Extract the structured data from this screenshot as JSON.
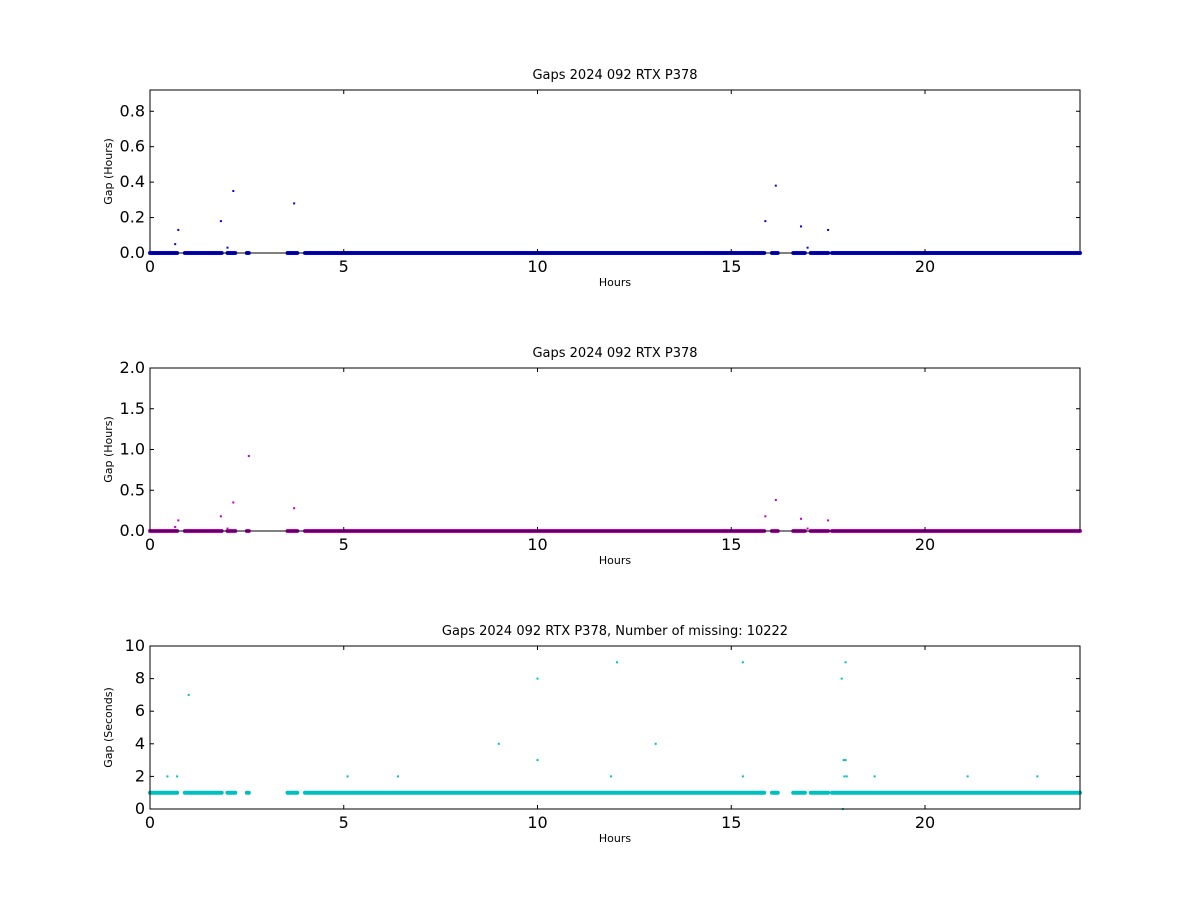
{
  "chart_data": [
    {
      "type": "scatter",
      "title": "Gaps 2024 092 RTX  P378",
      "xlabel": "Hours",
      "ylabel": "Gap (Hours)",
      "xlim": [
        0,
        24
      ],
      "ylim": [
        0,
        0.92
      ],
      "xticks": [
        "0",
        "5",
        "10",
        "15",
        "20"
      ],
      "yticks": [
        "0.0",
        "0.2",
        "0.4",
        "0.6",
        "0.8"
      ],
      "grid": false,
      "color": "#0000ff",
      "baseline": {
        "y": 0.0,
        "x_ranges": [
          [
            0,
            0.7
          ],
          [
            0.9,
            1.85
          ],
          [
            2.0,
            2.2
          ],
          [
            2.5,
            2.55
          ],
          [
            3.55,
            3.8
          ],
          [
            4.0,
            15.85
          ],
          [
            16.05,
            16.2
          ],
          [
            16.6,
            16.9
          ],
          [
            17.05,
            17.5
          ],
          [
            17.6,
            24
          ]
        ]
      },
      "points": [
        {
          "x": 0.65,
          "y": 0.05
        },
        {
          "x": 0.73,
          "y": 0.13
        },
        {
          "x": 1.83,
          "y": 0.18
        },
        {
          "x": 2.0,
          "y": 0.03
        },
        {
          "x": 2.15,
          "y": 0.35
        },
        {
          "x": 3.72,
          "y": 0.28
        },
        {
          "x": 15.88,
          "y": 0.18
        },
        {
          "x": 16.15,
          "y": 0.38
        },
        {
          "x": 16.8,
          "y": 0.15
        },
        {
          "x": 16.97,
          "y": 0.03
        },
        {
          "x": 17.5,
          "y": 0.13
        }
      ]
    },
    {
      "type": "scatter",
      "title": "Gaps 2024 092 RTX  P378",
      "xlabel": "Hours",
      "ylabel": "Gap (Hours)",
      "xlim": [
        0,
        24
      ],
      "ylim": [
        0,
        2.0
      ],
      "xticks": [
        "0",
        "5",
        "10",
        "15",
        "20"
      ],
      "yticks": [
        "0.0",
        "0.5",
        "1.0",
        "1.5",
        "2.0"
      ],
      "grid": false,
      "color": "#bf00bf",
      "baseline": {
        "y": 0.0,
        "x_ranges": [
          [
            0,
            0.7
          ],
          [
            0.9,
            1.85
          ],
          [
            2.0,
            2.2
          ],
          [
            2.5,
            2.55
          ],
          [
            3.55,
            3.8
          ],
          [
            4.0,
            15.85
          ],
          [
            16.05,
            16.2
          ],
          [
            16.6,
            16.9
          ],
          [
            17.05,
            17.5
          ],
          [
            17.6,
            24
          ]
        ]
      },
      "points": [
        {
          "x": 0.65,
          "y": 0.05
        },
        {
          "x": 0.73,
          "y": 0.13
        },
        {
          "x": 1.83,
          "y": 0.18
        },
        {
          "x": 2.0,
          "y": 0.03
        },
        {
          "x": 2.15,
          "y": 0.35
        },
        {
          "x": 2.55,
          "y": 0.92
        },
        {
          "x": 3.72,
          "y": 0.28
        },
        {
          "x": 15.88,
          "y": 0.18
        },
        {
          "x": 16.15,
          "y": 0.38
        },
        {
          "x": 16.8,
          "y": 0.15
        },
        {
          "x": 16.97,
          "y": 0.03
        },
        {
          "x": 17.5,
          "y": 0.13
        }
      ]
    },
    {
      "type": "scatter",
      "title": "Gaps 2024 092 RTX  P378, Number of missing: 10222",
      "xlabel": "Hours",
      "ylabel": "Gap (Seconds)",
      "xlim": [
        0,
        24
      ],
      "ylim": [
        0,
        10
      ],
      "xticks": [
        "0",
        "5",
        "10",
        "15",
        "20"
      ],
      "yticks": [
        "0",
        "2",
        "4",
        "6",
        "8",
        "10"
      ],
      "grid": false,
      "color": "#00bfbf",
      "baseline": {
        "y": 1.0,
        "x_ranges": [
          [
            0,
            0.7
          ],
          [
            0.9,
            1.85
          ],
          [
            2.0,
            2.2
          ],
          [
            2.5,
            2.55
          ],
          [
            3.55,
            3.8
          ],
          [
            4.0,
            15.85
          ],
          [
            16.05,
            16.2
          ],
          [
            16.6,
            16.9
          ],
          [
            17.05,
            17.5
          ],
          [
            17.6,
            24
          ]
        ]
      },
      "points": [
        {
          "x": 0.45,
          "y": 2
        },
        {
          "x": 0.7,
          "y": 2
        },
        {
          "x": 1.0,
          "y": 7
        },
        {
          "x": 5.1,
          "y": 2
        },
        {
          "x": 6.4,
          "y": 2
        },
        {
          "x": 9.0,
          "y": 4
        },
        {
          "x": 10.0,
          "y": 8
        },
        {
          "x": 10.0,
          "y": 3
        },
        {
          "x": 11.9,
          "y": 2
        },
        {
          "x": 12.05,
          "y": 9
        },
        {
          "x": 13.05,
          "y": 4
        },
        {
          "x": 15.3,
          "y": 9
        },
        {
          "x": 15.3,
          "y": 2
        },
        {
          "x": 17.85,
          "y": 8
        },
        {
          "x": 17.95,
          "y": 9
        },
        {
          "x": 17.9,
          "y": 3
        },
        {
          "x": 17.95,
          "y": 3
        },
        {
          "x": 17.92,
          "y": 2
        },
        {
          "x": 17.98,
          "y": 2
        },
        {
          "x": 17.88,
          "y": 0
        },
        {
          "x": 18.7,
          "y": 2
        },
        {
          "x": 21.1,
          "y": 2
        },
        {
          "x": 22.9,
          "y": 2
        }
      ]
    }
  ]
}
